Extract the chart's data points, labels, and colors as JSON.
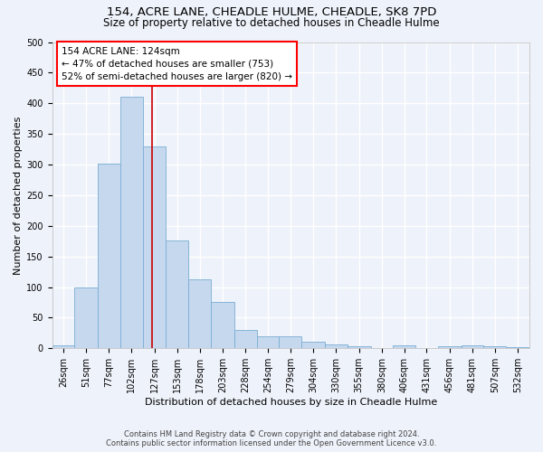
{
  "title1": "154, ACRE LANE, CHEADLE HULME, CHEADLE, SK8 7PD",
  "title2": "Size of property relative to detached houses in Cheadle Hulme",
  "xlabel": "Distribution of detached houses by size in Cheadle Hulme",
  "ylabel": "Number of detached properties",
  "annotation_line1": "154 ACRE LANE: 124sqm",
  "annotation_line2": "← 47% of detached houses are smaller (753)",
  "annotation_line3": "52% of semi-detached houses are larger (820) →",
  "footer1": "Contains HM Land Registry data © Crown copyright and database right 2024.",
  "footer2": "Contains public sector information licensed under the Open Government Licence v3.0.",
  "bar_color": "#c5d8ee",
  "bar_edge_color": "#7aaed4",
  "vline_x": 124,
  "vline_color": "#cc0000",
  "categories": [
    "26sqm",
    "51sqm",
    "77sqm",
    "102sqm",
    "127sqm",
    "153sqm",
    "178sqm",
    "203sqm",
    "228sqm",
    "254sqm",
    "279sqm",
    "304sqm",
    "330sqm",
    "355sqm",
    "380sqm",
    "406sqm",
    "431sqm",
    "456sqm",
    "481sqm",
    "507sqm",
    "532sqm"
  ],
  "bin_edges": [
    13,
    38,
    64,
    89,
    114,
    140,
    165,
    190,
    216,
    241,
    266,
    291,
    317,
    342,
    368,
    393,
    418,
    443,
    469,
    494,
    519,
    545
  ],
  "values": [
    5,
    100,
    302,
    410,
    330,
    176,
    112,
    76,
    30,
    20,
    19,
    11,
    7,
    4,
    1,
    5,
    1,
    4,
    5,
    3,
    2
  ],
  "ylim": [
    0,
    500
  ],
  "yticks": [
    0,
    50,
    100,
    150,
    200,
    250,
    300,
    350,
    400,
    450,
    500
  ],
  "background_color": "#eef2fa",
  "grid_color": "#ffffff",
  "title1_fontsize": 9.5,
  "title2_fontsize": 8.5,
  "xlabel_fontsize": 8,
  "ylabel_fontsize": 8,
  "tick_fontsize": 7,
  "footer_fontsize": 6,
  "annotation_fontsize": 7.5
}
